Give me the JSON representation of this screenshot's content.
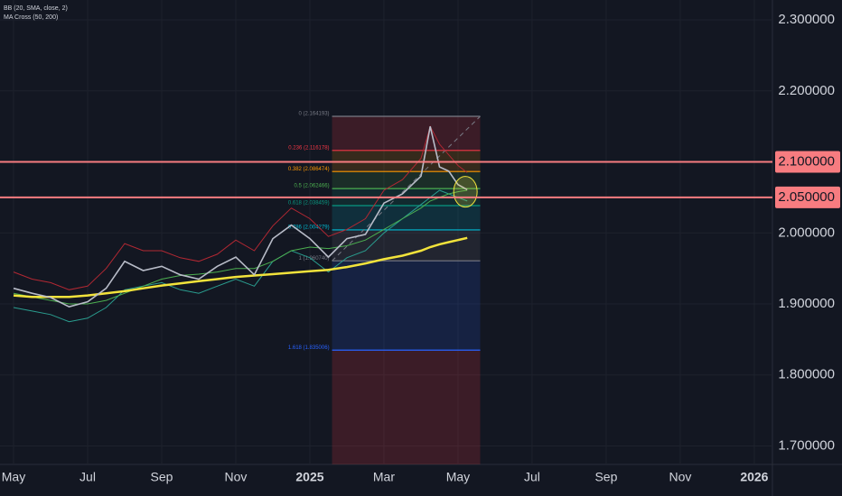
{
  "chart_data": {
    "type": "line",
    "indicators": [
      "BB (20, SMA, close, 2)",
      "MA Cross (50, 200)"
    ],
    "x": [
      0,
      0.5,
      1,
      1.5,
      2,
      2.5,
      3,
      3.5,
      4,
      4.5,
      5,
      5.5,
      6,
      6.5,
      7,
      7.5,
      8,
      8.5,
      9,
      9.5,
      10,
      10.5,
      11,
      11.25,
      11.5,
      11.75,
      12,
      12.25
    ],
    "series": [
      {
        "color": "#b22833",
        "values": [
          1.945,
          1.935,
          1.93,
          1.92,
          1.925,
          1.95,
          1.985,
          1.975,
          1.975,
          1.965,
          1.96,
          1.97,
          1.99,
          1.975,
          2.01,
          2.035,
          2.02,
          1.995,
          2.005,
          2.02,
          2.06,
          2.075,
          2.105,
          2.15,
          2.125,
          2.11,
          2.095,
          2.085
        ]
      },
      {
        "color": "#2a9d8f",
        "values": [
          1.895,
          1.89,
          1.885,
          1.875,
          1.88,
          1.895,
          1.92,
          1.925,
          1.93,
          1.92,
          1.915,
          1.925,
          1.935,
          1.925,
          1.96,
          1.975,
          1.965,
          1.945,
          1.965,
          1.975,
          2.0,
          2.02,
          2.04,
          2.05,
          2.06,
          2.055,
          2.05,
          2.045
        ]
      },
      {
        "color": "#4caf50",
        "values": [
          1.915,
          1.91,
          1.905,
          1.9,
          1.9,
          1.905,
          1.915,
          1.925,
          1.935,
          1.94,
          1.942,
          1.945,
          1.95,
          1.95,
          1.96,
          1.975,
          1.98,
          1.978,
          1.982,
          1.99,
          2.005,
          2.02,
          2.035,
          2.045,
          2.05,
          2.055,
          2.058,
          2.06
        ]
      },
      {
        "color": "#f2e33b",
        "values": [
          1.912,
          1.91,
          1.91,
          1.91,
          1.912,
          1.915,
          1.918,
          1.922,
          1.926,
          1.929,
          1.932,
          1.935,
          1.938,
          1.94,
          1.942,
          1.944,
          1.946,
          1.948,
          1.952,
          1.957,
          1.963,
          1.968,
          1.975,
          1.98,
          1.984,
          1.987,
          1.99,
          1.993
        ]
      },
      {
        "color": "#b8bcc8",
        "values": [
          1.922,
          1.915,
          1.909,
          1.896,
          1.903,
          1.922,
          1.96,
          1.947,
          1.953,
          1.941,
          1.935,
          1.953,
          1.966,
          1.941,
          1.992,
          2.011,
          1.992,
          1.966,
          1.992,
          1.998,
          2.042,
          2.055,
          2.08,
          2.15,
          2.093,
          2.087,
          2.068,
          2.061
        ]
      }
    ],
    "xlim": [
      -0.366,
      20.49
    ],
    "xticks": [
      {
        "value": 0,
        "label": "May"
      },
      {
        "value": 2,
        "label": "Jul"
      },
      {
        "value": 4,
        "label": "Sep"
      },
      {
        "value": 6,
        "label": "Nov"
      },
      {
        "value": 8,
        "label": "2025"
      },
      {
        "value": 10,
        "label": "Mar"
      },
      {
        "value": 12,
        "label": "May"
      },
      {
        "value": 14,
        "label": "Jul"
      },
      {
        "value": 16,
        "label": "Sep"
      },
      {
        "value": 18,
        "label": "Nov"
      },
      {
        "value": 20,
        "label": "2026"
      }
    ],
    "ylim": [
      1.674,
      2.328
    ],
    "yticks": [
      {
        "value": 1.7,
        "label": "1.700000"
      },
      {
        "value": 1.8,
        "label": "1.800000"
      },
      {
        "value": 1.9,
        "label": "1.900000"
      },
      {
        "value": 2.0,
        "label": "2.000000"
      },
      {
        "value": 2.2,
        "label": "2.200000"
      },
      {
        "value": 2.3,
        "label": "2.300000"
      }
    ],
    "levels": [
      {
        "value": 2.1,
        "label": "2.100000"
      },
      {
        "value": 2.05,
        "label": "2.050000"
      }
    ],
    "fibonacci": {
      "x": [
        8.6,
        12.6
      ],
      "levels": [
        {
          "value": 2.164193,
          "label": "0 (2.164193)",
          "color": "#787b86"
        },
        {
          "value": 2.116178,
          "label": "0.236 (2.116178)",
          "color": "#f23645"
        },
        {
          "value": 2.086474,
          "label": "0.382 (2.086474)",
          "color": "#ff9800"
        },
        {
          "value": 2.062466,
          "label": "0.5 (2.062466)",
          "color": "#4caf50"
        },
        {
          "value": 2.038459,
          "label": "0.618 (2.038459)",
          "color": "#089981"
        },
        {
          "value": 2.004279,
          "label": "0.786 (2.004279)",
          "color": "#00bcd4"
        },
        {
          "value": 1.96074,
          "label": "1 (1.960740)",
          "color": "#787b86"
        },
        {
          "value": 1.835006,
          "label": "1.618 (1.835006)",
          "color": "#2962ff"
        }
      ]
    }
  }
}
